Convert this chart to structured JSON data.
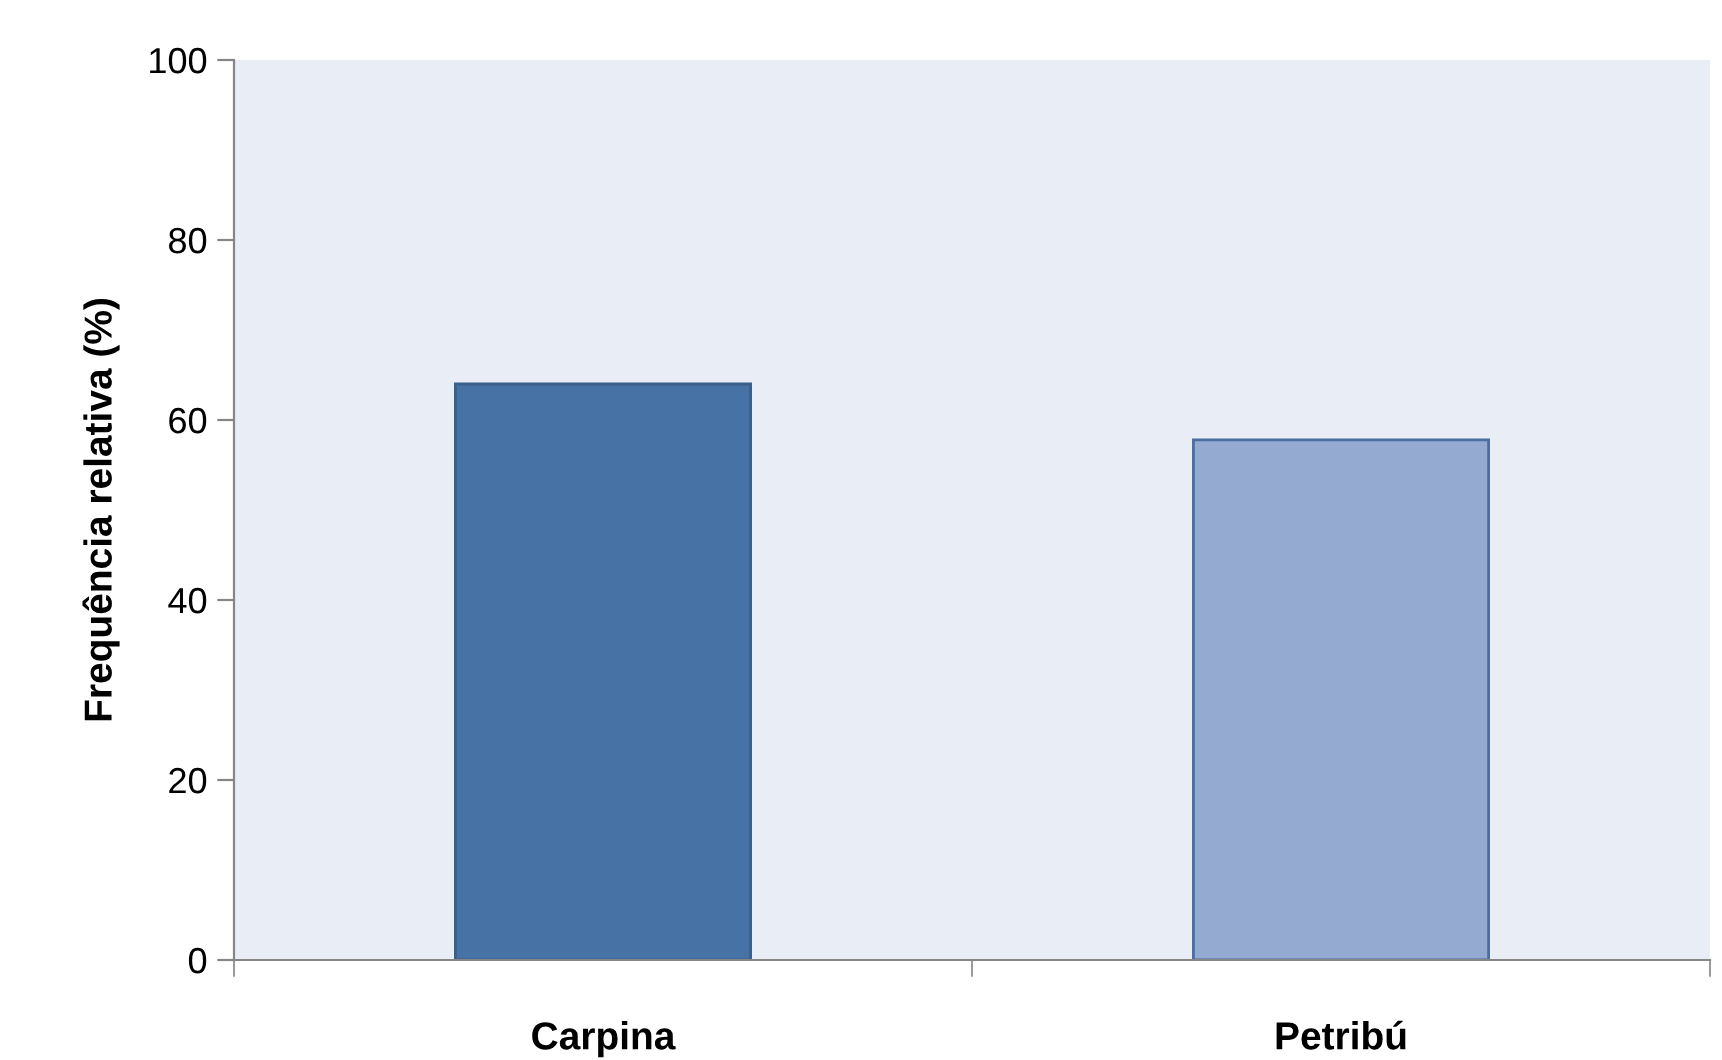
{
  "chart_data": {
    "type": "bar",
    "ylabel": "Frequência relativa (%)",
    "categories": [
      "Carpina",
      "Petribú"
    ],
    "series": [
      {
        "values": [
          64,
          57.8
        ],
        "colors": [
          "#4672a6",
          "#95aad1"
        ]
      }
    ],
    "ylim": [
      0,
      100
    ],
    "yticks": [
      0,
      20,
      40,
      60,
      80,
      100
    ],
    "grid": false,
    "legend": false
  }
}
